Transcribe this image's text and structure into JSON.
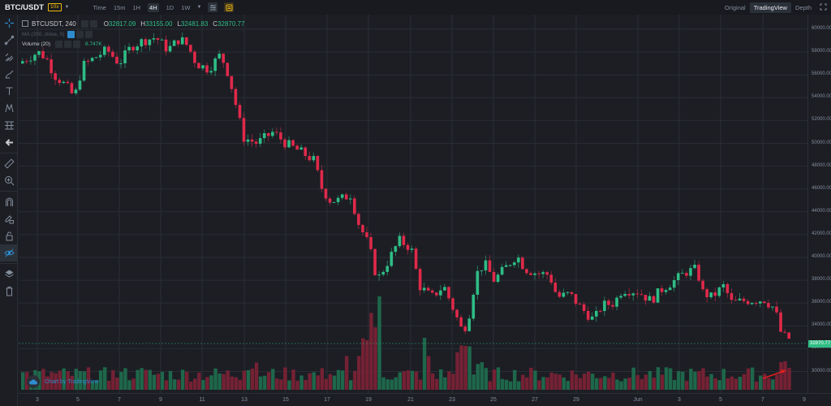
{
  "topbar": {
    "pair": "BTC/USDT",
    "leverage": "10x",
    "timeframes": [
      {
        "label": "Time",
        "active": false
      },
      {
        "label": "15m",
        "active": false
      },
      {
        "label": "1H",
        "active": false
      },
      {
        "label": "4H",
        "active": true
      },
      {
        "label": "1D",
        "active": false
      },
      {
        "label": "1W",
        "active": false
      }
    ],
    "views": [
      {
        "label": "Original",
        "active": false
      },
      {
        "label": "TradingView",
        "active": true
      },
      {
        "label": "Depth",
        "active": false
      }
    ]
  },
  "legend": {
    "symbol": "BTCUSDT, 240",
    "o_label": "O",
    "o": "32817.09",
    "h_label": "H",
    "h": "33155.00",
    "l_label": "L",
    "l": "32481.83",
    "c_label": "C",
    "c": "32870.77",
    "ma": "MA (200, close, 0)",
    "volume": "Volume (20)",
    "volume_value": "8.747K"
  },
  "watermark": "Chart by TradingView",
  "price_axis": {
    "labels": [
      "60000.00",
      "58000.00",
      "56000.00",
      "54000.00",
      "52000.00",
      "50000.00",
      "48000.00",
      "46000.00",
      "44000.00",
      "42000.00",
      "40000.00",
      "38000.00",
      "36000.00",
      "34000.00",
      "32000.00",
      "30000.00"
    ],
    "current": "32870.77"
  },
  "time_axis": {
    "labels": [
      "3",
      "5",
      "7",
      "9",
      "11",
      "13",
      "15",
      "17",
      "19",
      "21",
      "23",
      "25",
      "27",
      "29",
      "Jun",
      "3",
      "5",
      "7",
      "9"
    ]
  },
  "colors": {
    "up": "#2ebd85",
    "down": "#e0294a",
    "bg": "#1c1e24",
    "grid": "#2a2d35",
    "accent": "#f0b90b",
    "annotation_arrow": "#e02020"
  },
  "annotation": {
    "type": "arrow",
    "color": "#e02020",
    "points_to": "latest-volume-bars"
  }
}
